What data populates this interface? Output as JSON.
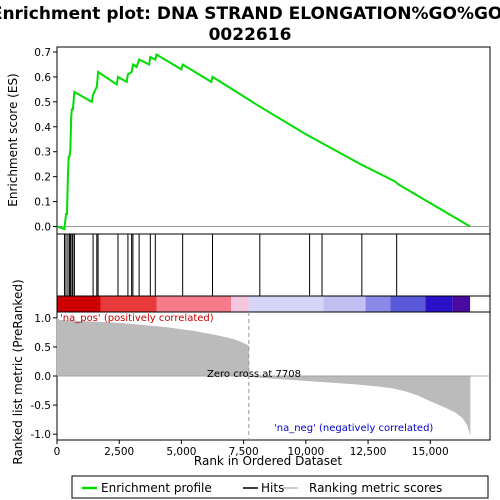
{
  "chart_data": [
    {
      "type": "line",
      "title_line1": "Enrichment plot: DNA STRAND ELONGATION%GO%GO:",
      "title_line2": "0022616",
      "ylabel": "Enrichment score (ES)",
      "ylim": [
        -0.03,
        0.72
      ],
      "yticks": [
        "0.0",
        "0.1",
        "0.2",
        "0.3",
        "0.4",
        "0.5",
        "0.6",
        "0.7"
      ],
      "ytick_values": [
        0.0,
        0.1,
        0.2,
        0.3,
        0.4,
        0.5,
        0.6,
        0.7
      ],
      "series": [
        {
          "name": "Enrichment profile",
          "color": "#00dd00",
          "x": [
            0,
            300,
            330,
            360,
            400,
            440,
            470,
            500,
            540,
            570,
            600,
            640,
            700,
            1400,
            1450,
            1600,
            1650,
            2400,
            2450,
            2800,
            2850,
            3000,
            3050,
            3200,
            3300,
            3700,
            3750,
            3950,
            4000,
            5000,
            5050,
            6200,
            6250,
            8000,
            10000,
            12200,
            13600,
            13700,
            16600
          ],
          "y": [
            0.0,
            -0.01,
            0.02,
            0.05,
            0.05,
            0.2,
            0.28,
            0.28,
            0.31,
            0.44,
            0.47,
            0.47,
            0.54,
            0.5,
            0.53,
            0.56,
            0.62,
            0.57,
            0.6,
            0.58,
            0.61,
            0.62,
            0.65,
            0.64,
            0.67,
            0.65,
            0.68,
            0.67,
            0.69,
            0.63,
            0.65,
            0.58,
            0.6,
            0.49,
            0.37,
            0.25,
            0.18,
            0.17,
            0.0
          ]
        }
      ],
      "grid": false
    },
    {
      "type": "rug",
      "name": "Hits",
      "hit_positions": [
        300,
        360,
        440,
        500,
        540,
        600,
        640,
        700,
        1450,
        1600,
        1650,
        2450,
        2850,
        3000,
        3050,
        3300,
        3750,
        3950,
        5050,
        6250,
        8150,
        10150,
        10650,
        12250,
        13650
      ]
    },
    {
      "type": "heatmap",
      "name": "rank-colorbar",
      "segments": [
        {
          "from": 0,
          "to": 1750,
          "color": "#cc0000"
        },
        {
          "from": 1750,
          "to": 4000,
          "color": "#e83a3a"
        },
        {
          "from": 4000,
          "to": 7000,
          "color": "#f57a8a"
        },
        {
          "from": 7000,
          "to": 7700,
          "color": "#f5c5e0"
        },
        {
          "from": 7700,
          "to": 10700,
          "color": "#d5d5f7"
        },
        {
          "from": 10700,
          "to": 12400,
          "color": "#c0c0f2"
        },
        {
          "from": 12400,
          "to": 13400,
          "color": "#8a8ae6"
        },
        {
          "from": 13400,
          "to": 14800,
          "color": "#5a5ad8"
        },
        {
          "from": 14800,
          "to": 15900,
          "color": "#2a10c8"
        },
        {
          "from": 15900,
          "to": 16600,
          "color": "#4a0aa0"
        }
      ]
    },
    {
      "type": "area",
      "name": "Ranking metric scores",
      "ylabel": "Ranked list metric (PreRanked)",
      "xlabel": "Rank in Ordered Dataset",
      "xlim": [
        0,
        17400
      ],
      "ylim": [
        -1.1,
        1.1
      ],
      "xticks": [
        "0",
        "2,500",
        "5,000",
        "7,500",
        "10,000",
        "12,500",
        "15,000"
      ],
      "xtick_values": [
        0,
        2500,
        5000,
        7500,
        10000,
        12500,
        15000
      ],
      "yticks": [
        "1.0",
        "0.5",
        "0.0",
        "-0.5",
        "-1.0"
      ],
      "ytick_values": [
        1.0,
        0.5,
        0.0,
        -0.5,
        -1.0
      ],
      "color": "#bbbbbb",
      "x": [
        0,
        100,
        500,
        1000,
        1500,
        2000,
        2500,
        3000,
        3500,
        4000,
        4500,
        5000,
        5500,
        6000,
        6500,
        7000,
        7300,
        7500,
        7700,
        7710,
        8000,
        9000,
        10000,
        11000,
        12000,
        13000,
        13500,
        14000,
        14500,
        15000,
        15500,
        16000,
        16300,
        16500,
        16600
      ],
      "values": [
        1.0,
        0.96,
        0.95,
        0.94,
        0.93,
        0.92,
        0.91,
        0.89,
        0.87,
        0.85,
        0.83,
        0.8,
        0.77,
        0.73,
        0.69,
        0.64,
        0.6,
        0.56,
        0.52,
        -0.01,
        -0.02,
        -0.05,
        -0.08,
        -0.11,
        -0.14,
        -0.18,
        -0.21,
        -0.26,
        -0.33,
        -0.43,
        -0.52,
        -0.62,
        -0.72,
        -0.85,
        -1.0
      ],
      "zero_cross_rank": 7708,
      "annotations": {
        "pos": "'na_pos' (positively correlated)",
        "neg": "'na_neg' (negatively correlated)",
        "zero_cross": "Zero cross at 7708"
      },
      "annotation_colors": {
        "pos": "#cc0000",
        "neg": "#0000cc"
      }
    }
  ],
  "legend": {
    "items": [
      {
        "label": "Enrichment profile",
        "color": "#00dd00"
      },
      {
        "label": "Hits",
        "color": "#000000"
      },
      {
        "label": "Ranking metric scores",
        "color": "#bbbbbb"
      }
    ]
  }
}
